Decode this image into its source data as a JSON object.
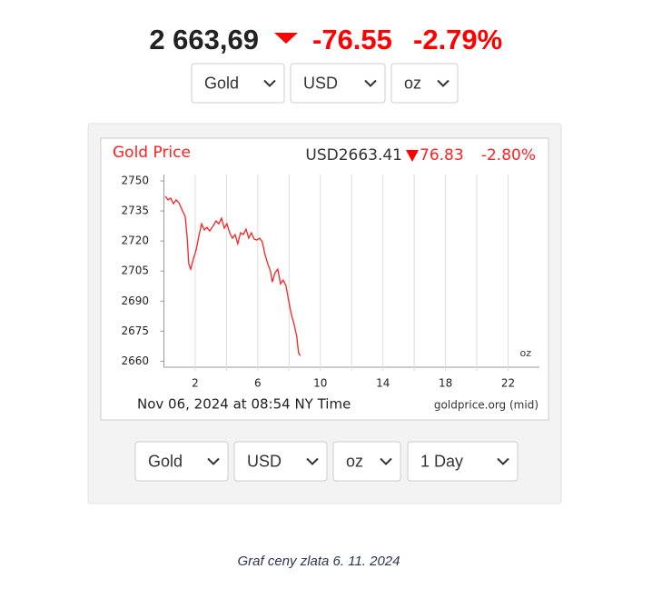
{
  "header": {
    "price": "2 663,69",
    "change": "-76.55",
    "change_pct": "-2.79%"
  },
  "selects_top": [
    "Gold",
    "USD",
    "oz"
  ],
  "selects_bottom": [
    "Gold",
    "USD",
    "oz",
    "1 Day"
  ],
  "chart_data": {
    "type": "line",
    "title": "Gold Price",
    "quote": "USD2663.41",
    "quote_change": "76.83",
    "quote_change_pct": "-2.80%",
    "unit_label": "oz",
    "timestamp": "Nov 06, 2024 at 08:54 NY Time",
    "source": "goldprice.org (mid)",
    "x": [
      0.09,
      0.26,
      0.43,
      0.61,
      0.78,
      0.96,
      1.19,
      1.36,
      1.48,
      1.59,
      1.71,
      1.88,
      2.06,
      2.23,
      2.41,
      2.58,
      2.75,
      2.93,
      3.16,
      3.33,
      3.51,
      3.68,
      3.86,
      4.03,
      4.2,
      4.38,
      4.55,
      4.72,
      4.9,
      5.07,
      5.25,
      5.42,
      5.59,
      5.77,
      5.94,
      6.12,
      6.29,
      6.46,
      6.64,
      6.81,
      6.93,
      7.1,
      7.28,
      7.45,
      7.62,
      7.8,
      7.97,
      8.14,
      8.32,
      8.49,
      8.61,
      8.72
    ],
    "series": [
      {
        "name": "Gold",
        "color": "#ff2020",
        "values": [
          2742.3,
          2740.5,
          2741.4,
          2738.6,
          2740.5,
          2739.1,
          2735,
          2732.3,
          2722.3,
          2708.6,
          2705.9,
          2711,
          2715.5,
          2722.3,
          2728.6,
          2725.5,
          2726.8,
          2725,
          2727.7,
          2730,
          2728.6,
          2731.4,
          2726.4,
          2728.6,
          2724.1,
          2721.4,
          2723.2,
          2718.6,
          2724.1,
          2723.2,
          2725.9,
          2721.4,
          2724.1,
          2720.9,
          2720.5,
          2721.4,
          2719.5,
          2713.2,
          2708.6,
          2705,
          2699.5,
          2704.1,
          2705.9,
          2698.6,
          2700.5,
          2697.7,
          2690.5,
          2683.6,
          2678.6,
          2672.3,
          2664.1,
          2662.7
        ]
      }
    ],
    "xlim": [
      0,
      24
    ],
    "xticks": [
      2,
      6,
      10,
      14,
      18,
      22
    ],
    "xminor": [
      4,
      8,
      12,
      16,
      20
    ],
    "ylim": [
      2657,
      2750
    ],
    "yticks": [
      2660,
      2675,
      2690,
      2705,
      2720,
      2735,
      2750
    ],
    "grid": true
  },
  "caption": "Graf ceny zlata 6. 11. 2024"
}
